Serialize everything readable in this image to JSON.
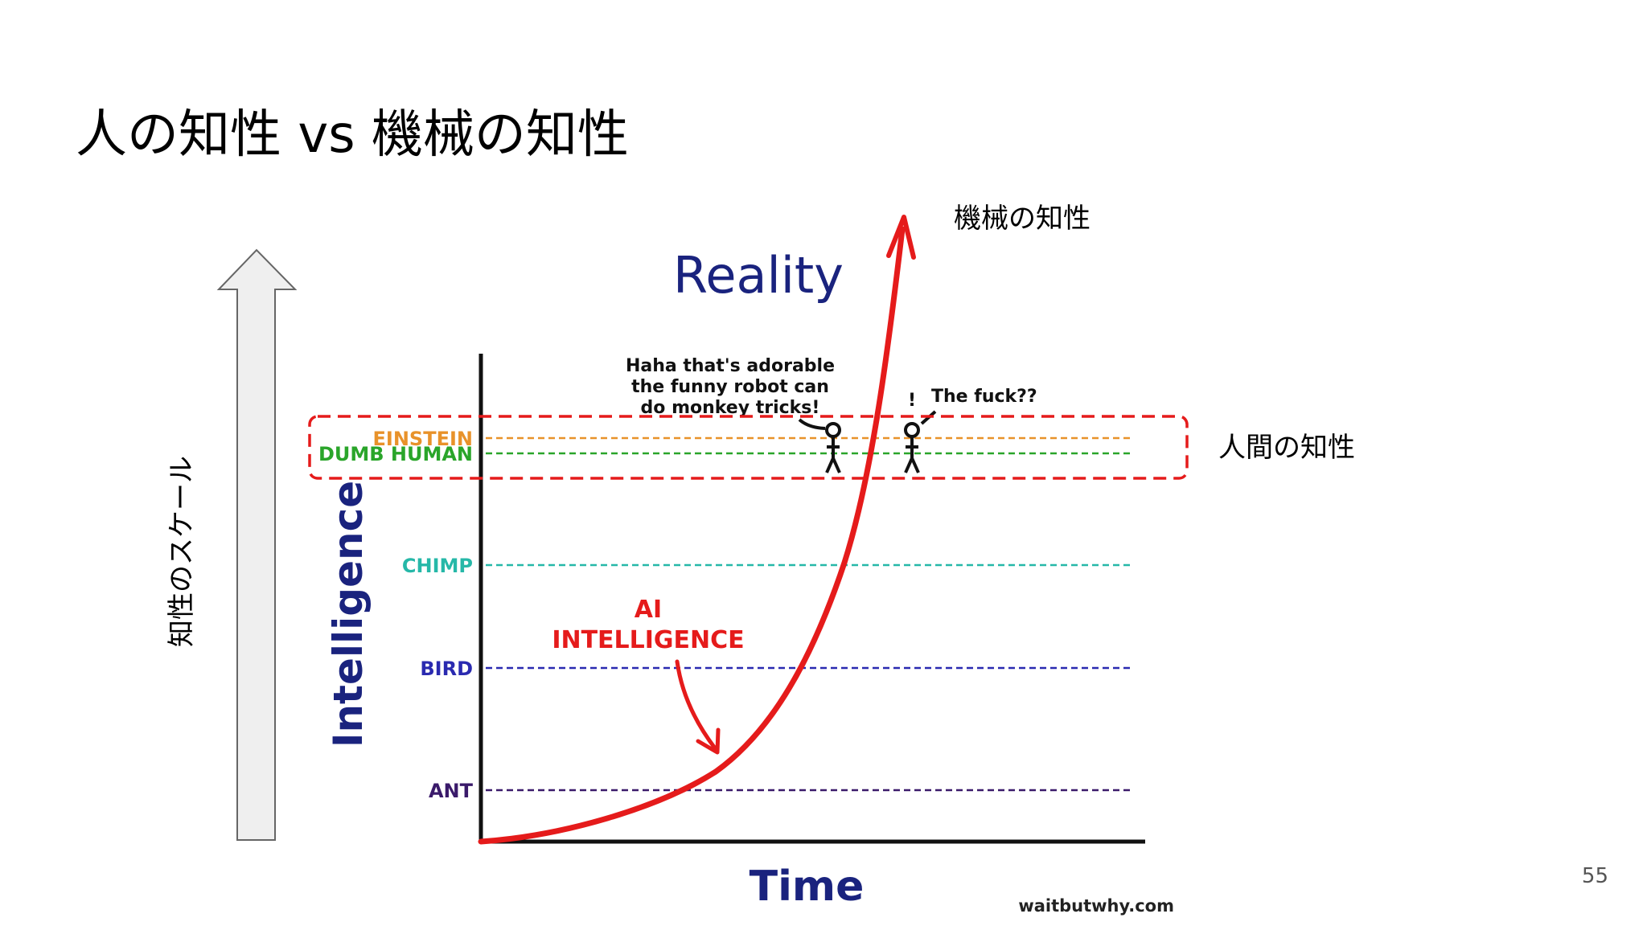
{
  "slide": {
    "title": "人の知性 vs 機械の知性",
    "page_number": "55"
  },
  "annotations": {
    "scale_arrow_label": "知性のスケール",
    "machine_label": "機械の知性",
    "human_label": "人間の知性"
  },
  "illustration": {
    "title": "Reality",
    "y_axis_label": "Intelligence",
    "x_axis_label": "Time",
    "levels": [
      {
        "label": "EINSTEIN",
        "color": "#e8922a"
      },
      {
        "label": "DUMB HUMAN",
        "color": "#2aa52a"
      },
      {
        "label": "CHIMP",
        "color": "#26b8a8"
      },
      {
        "label": "BIRD",
        "color": "#2a2ab0"
      },
      {
        "label": "ANT",
        "color": "#3a1a6a"
      }
    ],
    "curve_label_lines": [
      "AI",
      "INTELLIGENCE"
    ],
    "curve_color": "#e51b1b",
    "speech_1_lines": [
      "Haha that's adorable",
      "the funny robot can",
      "do monkey tricks!"
    ],
    "speech_2": "The fuck??",
    "exclamation": "!",
    "credit": "waitbutwhy.com"
  }
}
